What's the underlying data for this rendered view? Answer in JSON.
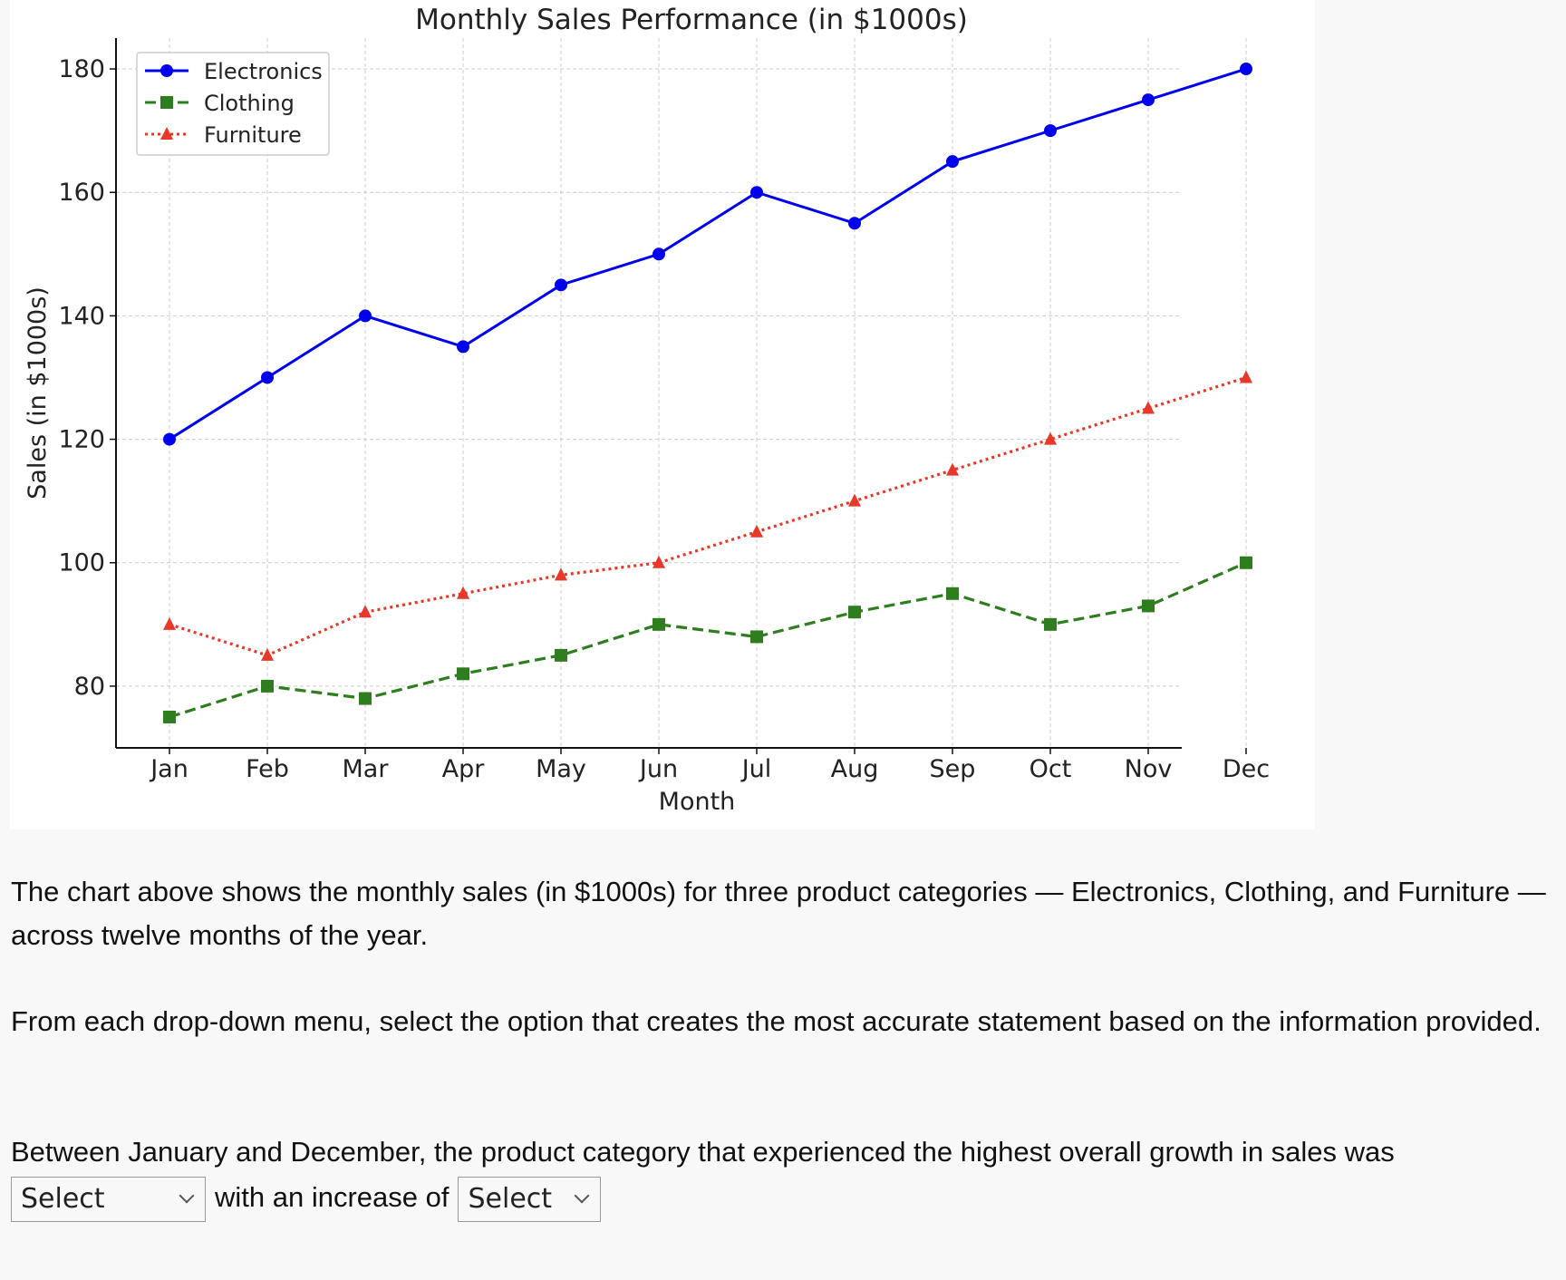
{
  "chart_data": {
    "type": "line",
    "title": "Monthly Sales Performance (in $1000s)",
    "xlabel": "Month",
    "ylabel": "Sales (in $1000s)",
    "categories": [
      "Jan",
      "Feb",
      "Mar",
      "Apr",
      "May",
      "Jun",
      "Jul",
      "Aug",
      "Sep",
      "Oct",
      "Nov",
      "Dec"
    ],
    "yticks": [
      80,
      100,
      120,
      140,
      160,
      180
    ],
    "ylim": [
      70,
      185
    ],
    "grid": true,
    "legend_position": "top-left",
    "series": [
      {
        "name": "Electronics",
        "color": "#0000ee",
        "marker": "circle",
        "line_style": "solid",
        "values": [
          120,
          130,
          140,
          135,
          145,
          150,
          160,
          155,
          165,
          170,
          175,
          180
        ]
      },
      {
        "name": "Clothing",
        "color": "#2e7d1e",
        "marker": "square",
        "line_style": "dashed",
        "values": [
          75,
          80,
          78,
          82,
          85,
          90,
          88,
          92,
          95,
          90,
          93,
          100
        ]
      },
      {
        "name": "Furniture",
        "color": "#e8382a",
        "marker": "triangle",
        "line_style": "dotted",
        "values": [
          90,
          85,
          92,
          95,
          98,
          100,
          105,
          110,
          115,
          120,
          125,
          130
        ]
      }
    ]
  },
  "description": "The chart above shows the monthly sales (in $1000s) for three product categories — Electronics, Clothing, and Furniture — across twelve months of the year.",
  "instructions": "From each drop-down menu, select the option that creates the most accurate statement based on the information provided.",
  "question": {
    "text_before": "Between January and December, the product category that experienced the highest overall growth in sales was",
    "text_middle": "with an increase of",
    "dropdown_category": {
      "selected": "Select"
    },
    "dropdown_increase": {
      "selected": "Select"
    }
  }
}
